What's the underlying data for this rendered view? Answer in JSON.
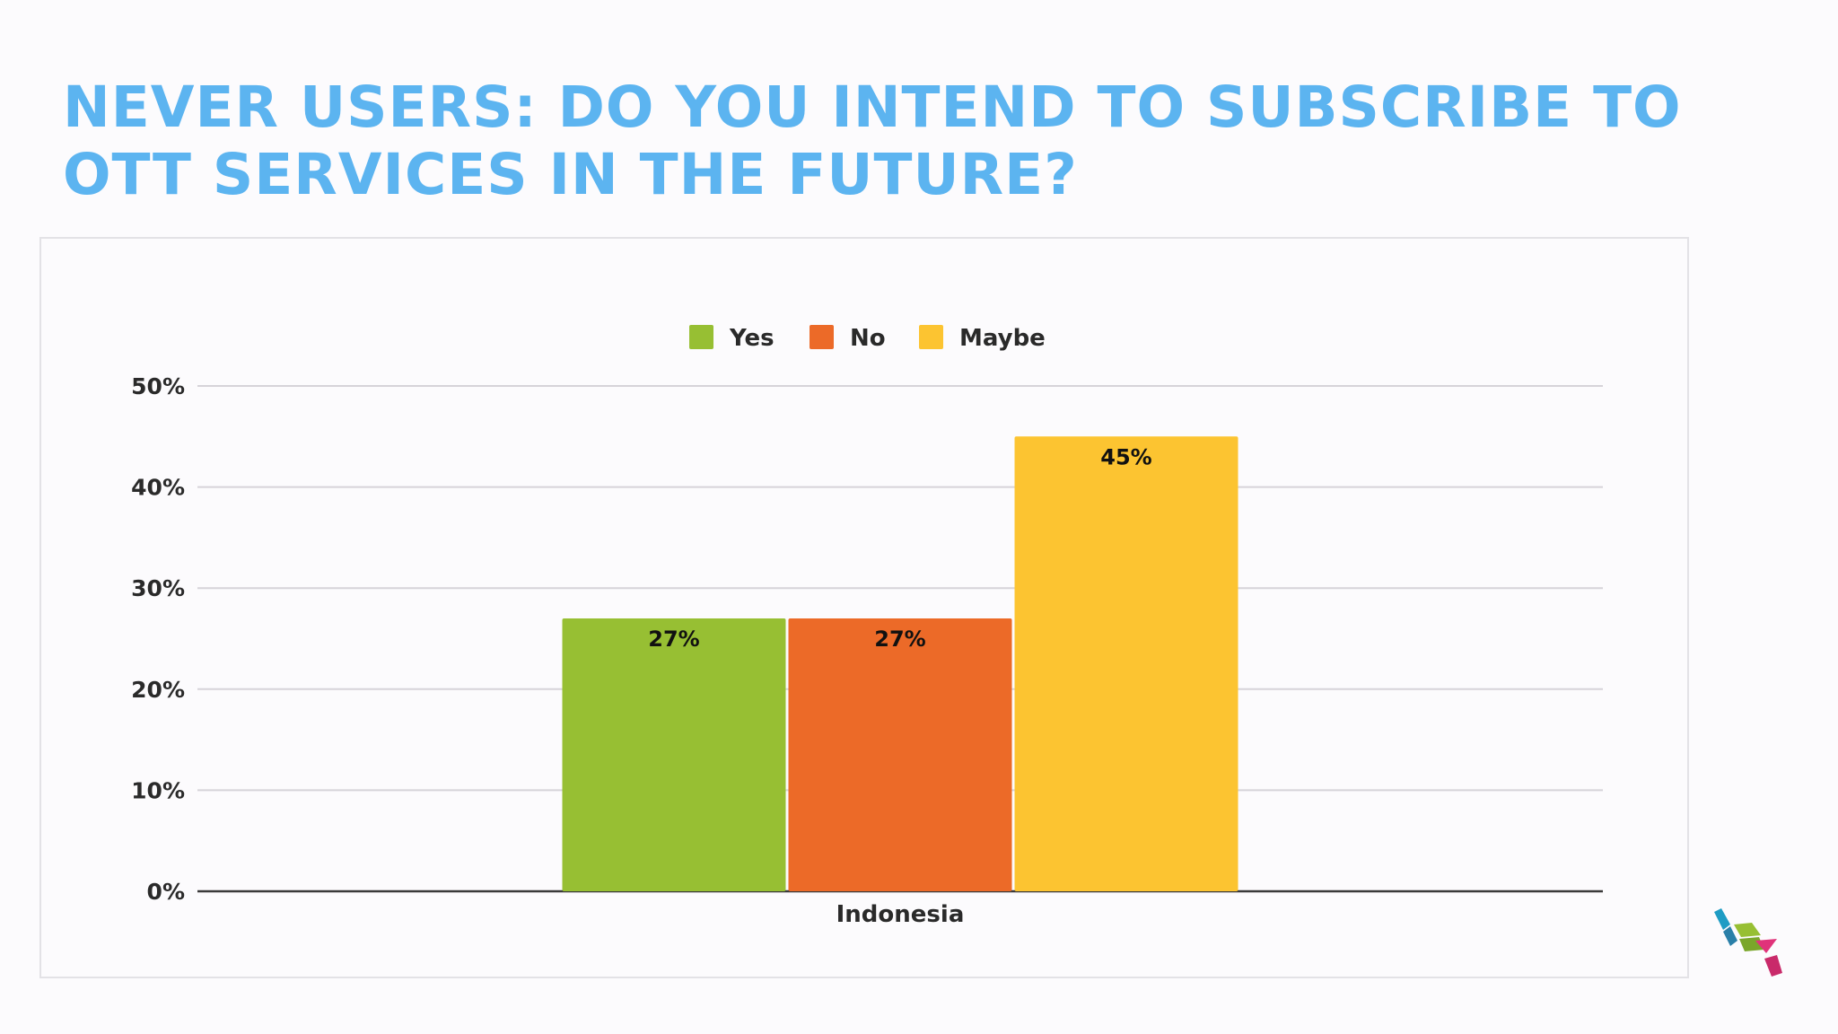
{
  "title": "NEVER USERS: DO YOU INTEND TO SUBSCRIBE TO OTT SERVICES IN THE FUTURE?",
  "colors": {
    "title": "#5cb4f0",
    "yes": "#97bf33",
    "no": "#ec6a28",
    "maybe": "#fcc431",
    "text": "#2a2a2a",
    "grid": "#d6d3d9",
    "axis": "#3a3a3a"
  },
  "chart_data": {
    "type": "bar",
    "categories": [
      "Indonesia"
    ],
    "series": [
      {
        "name": "Yes",
        "values": [
          27
        ],
        "labels": [
          "27%"
        ],
        "color_key": "yes"
      },
      {
        "name": "No",
        "values": [
          27
        ],
        "labels": [
          "27%"
        ],
        "color_key": "no"
      },
      {
        "name": "Maybe",
        "values": [
          45
        ],
        "labels": [
          "45%"
        ],
        "color_key": "maybe"
      }
    ],
    "ylim": [
      0,
      50
    ],
    "yticks": [
      0,
      10,
      20,
      30,
      40,
      50
    ],
    "ytick_labels": [
      "0%",
      "10%",
      "20%",
      "30%",
      "40%",
      "50%"
    ],
    "xlabel": "",
    "ylabel": "",
    "grid": true,
    "legend_position": "top-center"
  }
}
